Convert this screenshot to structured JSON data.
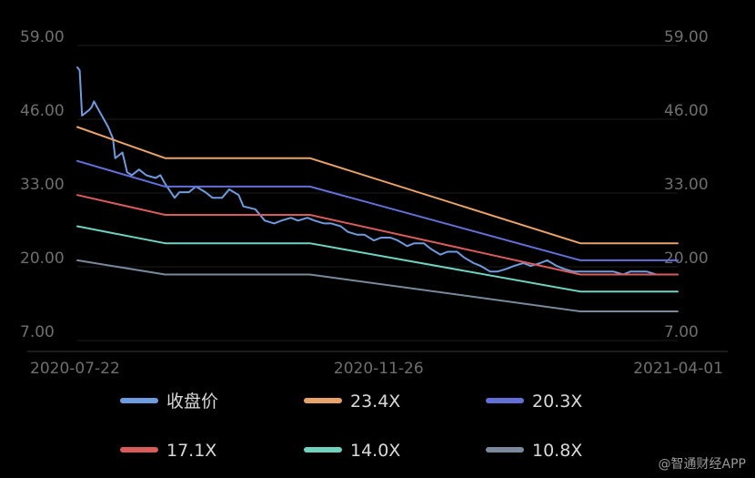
{
  "chart_data": {
    "type": "line",
    "x_range": [
      "2020-07-22",
      "2021-04-01"
    ],
    "x_ticks": [
      "2020-07-22",
      "2020-11-26",
      "2021-04-01"
    ],
    "y_ticks": [
      "59.00",
      "46.00",
      "33.00",
      "20.00",
      "7.00"
    ],
    "ylim": [
      7,
      59
    ],
    "grid": true,
    "legend_position": "bottom",
    "series": [
      {
        "name": "收盘价",
        "color": "#6f9bdf",
        "x": [
          "2020-07-22",
          "2020-07-23",
          "2020-07-24",
          "2020-07-27",
          "2020-07-28",
          "2020-07-29",
          "2020-07-31",
          "2020-08-04",
          "2020-08-06",
          "2020-08-07",
          "2020-08-10",
          "2020-08-12",
          "2020-08-14",
          "2020-08-17",
          "2020-08-20",
          "2020-08-24",
          "2020-08-26",
          "2020-08-28",
          "2020-09-01",
          "2020-09-03",
          "2020-09-07",
          "2020-09-10",
          "2020-09-14",
          "2020-09-17",
          "2020-09-21",
          "2020-09-24",
          "2020-09-28",
          "2020-09-30",
          "2020-10-05",
          "2020-10-09",
          "2020-10-13",
          "2020-10-16",
          "2020-10-20",
          "2020-10-23",
          "2020-10-27",
          "2020-10-30",
          "2020-11-03",
          "2020-11-06",
          "2020-11-10",
          "2020-11-13",
          "2020-11-17",
          "2020-11-20",
          "2020-11-24",
          "2020-11-27",
          "2020-12-01",
          "2020-12-04",
          "2020-12-08",
          "2020-12-11",
          "2020-12-15",
          "2020-12-18",
          "2020-12-22",
          "2020-12-25",
          "2020-12-29",
          "2021-01-01",
          "2021-01-05",
          "2021-01-08",
          "2021-01-12",
          "2021-01-15",
          "2021-01-19",
          "2021-01-22",
          "2021-01-26",
          "2021-01-29",
          "2021-02-02",
          "2021-02-05",
          "2021-02-09",
          "2021-02-12",
          "2021-02-16",
          "2021-02-19",
          "2021-02-23",
          "2021-02-26",
          "2021-03-02",
          "2021-03-05",
          "2021-03-09",
          "2021-03-12",
          "2021-03-16",
          "2021-03-19",
          "2021-03-23",
          "2021-03-26",
          "2021-03-30",
          "2021-04-01"
        ],
        "values": [
          54.5,
          54.0,
          46.0,
          47.0,
          47.5,
          48.5,
          47.0,
          44.0,
          42.0,
          38.5,
          39.5,
          36.0,
          35.5,
          36.5,
          35.5,
          35.0,
          35.5,
          34.0,
          31.5,
          32.5,
          32.5,
          33.5,
          32.5,
          31.5,
          31.5,
          33.0,
          32.0,
          30.0,
          29.5,
          27.5,
          27.0,
          27.5,
          28.0,
          27.5,
          28.0,
          27.5,
          27.0,
          27.0,
          26.5,
          25.5,
          25.0,
          25.0,
          24.0,
          24.5,
          24.5,
          24.0,
          23.0,
          23.5,
          23.5,
          22.5,
          21.5,
          22.0,
          22.0,
          21.0,
          20.0,
          19.5,
          18.5,
          18.5,
          19.0,
          19.5,
          20.0,
          19.5,
          20.0,
          20.5,
          19.5,
          19.0,
          18.5,
          18.5,
          18.5,
          18.5,
          18.5,
          18.5,
          18.0,
          18.5,
          18.5,
          18.5,
          18.0,
          18.0,
          18.0,
          18.0
        ]
      },
      {
        "name": "23.4X",
        "color": "#e9a268",
        "x": [
          "2020-07-22",
          "2020-08-28",
          "2020-10-28",
          "2021-02-19",
          "2021-04-01"
        ],
        "values": [
          44.0,
          38.5,
          38.5,
          23.5,
          23.5
        ]
      },
      {
        "name": "20.3X",
        "color": "#6470d8",
        "x": [
          "2020-07-22",
          "2020-08-28",
          "2020-10-28",
          "2021-02-19",
          "2021-04-01"
        ],
        "values": [
          38.0,
          33.5,
          33.5,
          20.5,
          20.5
        ]
      },
      {
        "name": "17.1X",
        "color": "#d95b5b",
        "x": [
          "2020-07-22",
          "2020-08-28",
          "2020-10-28",
          "2021-02-19",
          "2021-04-01"
        ],
        "values": [
          32.0,
          28.5,
          28.5,
          18.0,
          18.0
        ]
      },
      {
        "name": "14.0X",
        "color": "#6fd3c0",
        "x": [
          "2020-07-22",
          "2020-08-28",
          "2020-10-28",
          "2021-02-19",
          "2021-04-01"
        ],
        "values": [
          26.5,
          23.5,
          23.5,
          15.0,
          15.0
        ]
      },
      {
        "name": "10.8X",
        "color": "#7a899b",
        "x": [
          "2020-07-22",
          "2020-08-28",
          "2020-10-28",
          "2021-02-19",
          "2021-04-01"
        ],
        "values": [
          20.5,
          18.0,
          18.0,
          11.5,
          11.5
        ]
      }
    ]
  },
  "watermark": "@智通财经APP"
}
